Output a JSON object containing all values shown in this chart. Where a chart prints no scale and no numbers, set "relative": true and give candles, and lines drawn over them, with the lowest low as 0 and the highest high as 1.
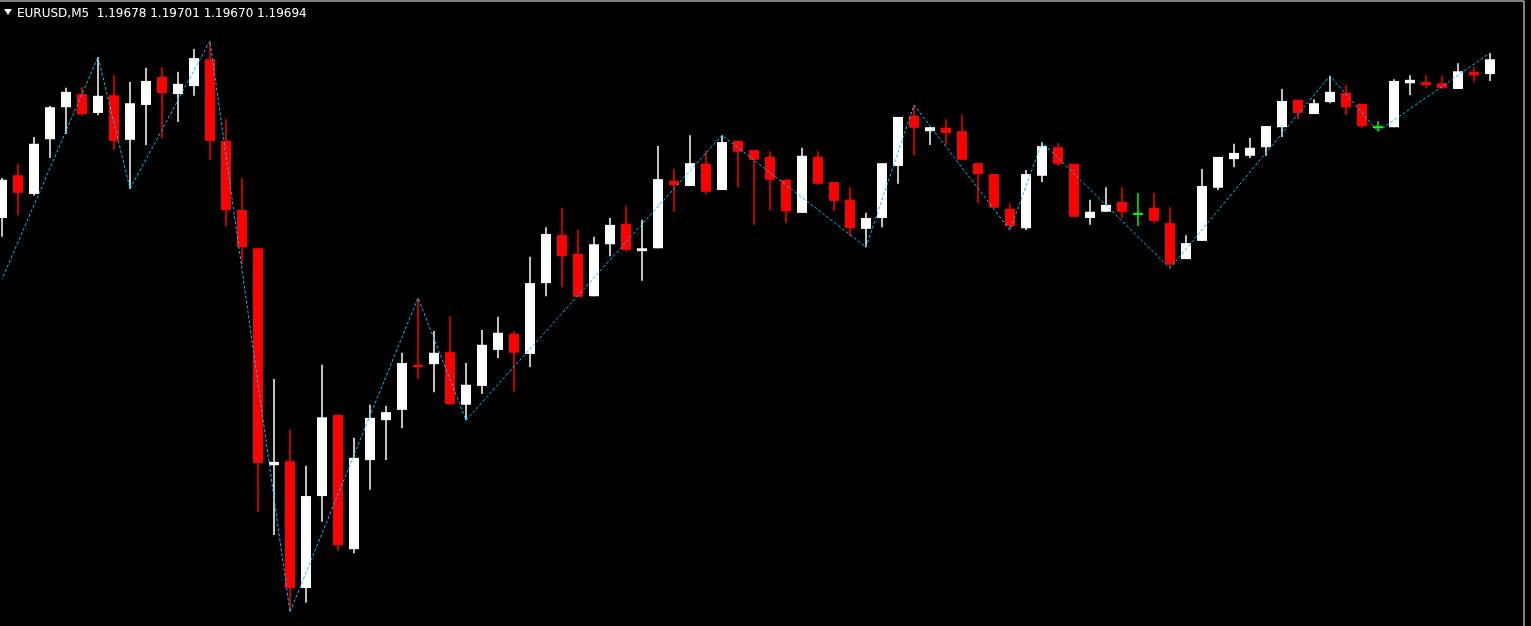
{
  "chart_data": {
    "type": "candlestick",
    "title": "EURUSD,M5  1.19678 1.19701 1.19670 1.19694",
    "relative": true,
    "categories": [
      null,
      null,
      null,
      null,
      null,
      null,
      null,
      null,
      null,
      null,
      null,
      null,
      null,
      null,
      null,
      null,
      null,
      null,
      null,
      null,
      null,
      null,
      null,
      null,
      null,
      null,
      null,
      null,
      null,
      null,
      null,
      null,
      null,
      null,
      null,
      null,
      null,
      null,
      null,
      null,
      null,
      null,
      null,
      null,
      null,
      null,
      null,
      null,
      null,
      null,
      null,
      null,
      null,
      null,
      null,
      null,
      null,
      null,
      null,
      null,
      null,
      null,
      null,
      null,
      null,
      null,
      null,
      null,
      null,
      null,
      null,
      null,
      null,
      null,
      null,
      null,
      null,
      null,
      null,
      null,
      null,
      null,
      null,
      null,
      null,
      null,
      null,
      null,
      null,
      null,
      null,
      null,
      null,
      null
    ],
    "ohlc": [
      [
        0.69,
        0.76,
        0.657,
        0.757
      ],
      [
        0.765,
        0.785,
        0.695,
        0.734
      ],
      [
        0.732,
        0.832,
        0.729,
        0.82
      ],
      [
        0.828,
        0.886,
        0.795,
        0.884
      ],
      [
        0.884,
        0.918,
        0.837,
        0.911
      ],
      [
        0.907,
        0.919,
        0.87,
        0.872
      ],
      [
        0.874,
        0.972,
        0.87,
        0.904
      ],
      [
        0.905,
        0.94,
        0.809,
        0.825
      ],
      [
        0.827,
        0.928,
        0.741,
        0.891
      ],
      [
        0.888,
        0.953,
        0.818,
        0.93
      ],
      [
        0.937,
        0.954,
        0.83,
        0.909
      ],
      [
        0.907,
        0.946,
        0.858,
        0.925
      ],
      [
        0.921,
        0.986,
        0.904,
        0.97
      ],
      [
        0.968,
        1,
        0.792,
        0.825
      ],
      [
        0.825,
        0.863,
        0.676,
        0.704
      ],
      [
        0.704,
        0.76,
        0.608,
        0.639
      ],
      [
        0.637,
        0.637,
        0.175,
        0.261
      ],
      [
        0.257,
        0.408,
        0.135,
        0.263
      ],
      [
        0.264,
        0.319,
        0,
        0.042
      ],
      [
        0.042,
        0.256,
        0.016,
        0.203
      ],
      [
        0.203,
        0.433,
        0.158,
        0.341
      ],
      [
        0.345,
        0.345,
        0.107,
        0.117
      ],
      [
        0.11,
        0.305,
        0.103,
        0.27
      ],
      [
        0.266,
        0.363,
        0.214,
        0.34
      ],
      [
        0.336,
        0.361,
        0.266,
        0.35
      ],
      [
        0.354,
        0.454,
        0.322,
        0.436
      ],
      [
        0.433,
        0.55,
        0.408,
        0.429
      ],
      [
        0.434,
        0.492,
        0.385,
        0.454
      ],
      [
        0.455,
        0.518,
        0.363,
        0.364
      ],
      [
        0.363,
        0.436,
        0.336,
        0.398
      ],
      [
        0.396,
        0.494,
        0.382,
        0.468
      ],
      [
        0.459,
        0.517,
        0.445,
        0.489
      ],
      [
        0.487,
        0.492,
        0.385,
        0.454
      ],
      [
        0.452,
        0.622,
        0.429,
        0.576
      ],
      [
        0.576,
        0.674,
        0.553,
        0.662
      ],
      [
        0.66,
        0.708,
        0.569,
        0.623
      ],
      [
        0.627,
        0.669,
        0.552,
        0.552
      ],
      [
        0.553,
        0.657,
        0.553,
        0.644
      ],
      [
        0.644,
        0.69,
        0.623,
        0.678
      ],
      [
        0.68,
        0.711,
        0.632,
        0.634
      ],
      [
        0.632,
        0.687,
        0.58,
        0.637
      ],
      [
        0.637,
        0.816,
        0.637,
        0.758
      ],
      [
        0.755,
        0.776,
        0.701,
        0.748
      ],
      [
        0.746,
        0.835,
        0.746,
        0.786
      ],
      [
        0.785,
        0.807,
        0.732,
        0.736
      ],
      [
        0.739,
        0.835,
        0.739,
        0.823
      ],
      [
        0.825,
        0.825,
        0.743,
        0.806
      ],
      [
        0.809,
        0.809,
        0.678,
        0.792
      ],
      [
        0.797,
        0.807,
        0.704,
        0.757
      ],
      [
        0.757,
        0.758,
        0.681,
        0.702
      ],
      [
        0.699,
        0.813,
        0.699,
        0.799
      ],
      [
        0.797,
        0.807,
        0.748,
        0.75
      ],
      [
        0.753,
        0.753,
        0.702,
        0.72
      ],
      [
        0.722,
        0.744,
        0.658,
        0.672
      ],
      [
        0.671,
        0.699,
        0.639,
        0.69
      ],
      [
        0.69,
        0.786,
        0.674,
        0.786
      ],
      [
        0.781,
        0.867,
        0.75,
        0.867
      ],
      [
        0.869,
        0.888,
        0.799,
        0.848
      ],
      [
        0.842,
        0.849,
        0.818,
        0.849
      ],
      [
        0.848,
        0.863,
        0.818,
        0.839
      ],
      [
        0.842,
        0.87,
        0.792,
        0.792
      ],
      [
        0.786,
        0.786,
        0.716,
        0.767
      ],
      [
        0.767,
        0.767,
        0.708,
        0.708
      ],
      [
        0.706,
        0.716,
        0.669,
        0.676
      ],
      [
        0.672,
        0.774,
        0.669,
        0.767
      ],
      [
        0.764,
        0.823,
        0.753,
        0.816
      ],
      [
        0.814,
        0.821,
        0.781,
        0.785
      ],
      [
        0.785,
        0.785,
        0.692,
        0.692
      ],
      [
        0.69,
        0.722,
        0.678,
        0.701
      ],
      [
        0.701,
        0.744,
        0.701,
        0.713
      ],
      [
        0.718,
        0.744,
        0.69,
        0.701
      ],
      [
        0.699,
        0.734,
        0.676,
        0.699
      ],
      [
        0.708,
        0.734,
        0.681,
        0.685
      ],
      [
        0.681,
        0.709,
        0.602,
        0.609
      ],
      [
        0.618,
        0.66,
        0.618,
        0.646
      ],
      [
        0.65,
        0.776,
        0.65,
        0.746
      ],
      [
        0.743,
        0.797,
        0.739,
        0.797
      ],
      [
        0.793,
        0.82,
        0.779,
        0.804
      ],
      [
        0.799,
        0.83,
        0.795,
        0.813
      ],
      [
        0.814,
        0.851,
        0.799,
        0.851
      ],
      [
        0.849,
        0.916,
        0.832,
        0.895
      ],
      [
        0.897,
        0.897,
        0.863,
        0.874
      ],
      [
        0.872,
        0.898,
        0.872,
        0.891
      ],
      [
        0.893,
        0.939,
        0.891,
        0.911
      ],
      [
        0.909,
        0.923,
        0.87,
        0.884
      ],
      [
        0.89,
        0.89,
        0.848,
        0.851
      ],
      [
        0.851,
        0.86,
        0.842,
        0.851
      ],
      [
        0.849,
        0.933,
        0.849,
        0.93
      ],
      [
        0.926,
        0.94,
        0.905,
        0.932
      ],
      [
        0.928,
        0.94,
        0.918,
        0.923
      ],
      [
        0.926,
        0.939,
        0.916,
        0.918
      ],
      [
        0.916,
        0.961,
        0.916,
        0.947
      ],
      [
        0.946,
        0.954,
        0.928,
        0.94
      ],
      [
        0.942,
        0.979,
        0.93,
        0.968
      ]
    ],
    "colors": [
      "#ffffff",
      "#ff0000",
      "#ffffff",
      "#ffffff",
      "#ffffff",
      "#ff0000",
      "#ffffff",
      "#ff0000",
      "#ffffff",
      "#ffffff",
      "#ff0000",
      "#ffffff",
      "#ffffff",
      "#ff0000",
      "#ff0000",
      "#ff0000",
      "#ff0000",
      "#ffffff",
      "#ff0000",
      "#ffffff",
      "#ffffff",
      "#ff0000",
      "#ffffff",
      "#ffffff",
      "#ffffff",
      "#ffffff",
      "#ff0000",
      "#ffffff",
      "#ff0000",
      "#ffffff",
      "#ffffff",
      "#ffffff",
      "#ff0000",
      "#ffffff",
      "#ffffff",
      "#ff0000",
      "#ff0000",
      "#ffffff",
      "#ffffff",
      "#ff0000",
      "#ffffff",
      "#ffffff",
      "#ff0000",
      "#ffffff",
      "#ff0000",
      "#ffffff",
      "#ff0000",
      "#ff0000",
      "#ff0000",
      "#ff0000",
      "#ffffff",
      "#ff0000",
      "#ff0000",
      "#ff0000",
      "#ffffff",
      "#ffffff",
      "#ffffff",
      "#ff0000",
      "#ffffff",
      "#ff0000",
      "#ff0000",
      "#ff0000",
      "#ff0000",
      "#ff0000",
      "#ffffff",
      "#ffffff",
      "#ff0000",
      "#ff0000",
      "#ffffff",
      "#ffffff",
      "#ff0000",
      "#00ff00",
      "#ff0000",
      "#ff0000",
      "#ffffff",
      "#ffffff",
      "#ffffff",
      "#ffffff",
      "#ffffff",
      "#ffffff",
      "#ffffff",
      "#ff0000",
      "#ffffff",
      "#ffffff",
      "#ff0000",
      "#ff0000",
      "#00ff00",
      "#ffffff",
      "#ffffff",
      "#ff0000",
      "#ff0000",
      "#ffffff",
      "#ff0000",
      "#ffffff"
    ],
    "series": [
      {
        "type": "line",
        "color": "#00bfff",
        "line_style": "dashed",
        "values": [
          0.583,
          null,
          null,
          null,
          null,
          null,
          0.972,
          null,
          0.741,
          null,
          null,
          null,
          null,
          1,
          null,
          null,
          null,
          null,
          0,
          null,
          null,
          null,
          null,
          null,
          null,
          null,
          0.55,
          null,
          null,
          0.336,
          null,
          null,
          null,
          null,
          null,
          null,
          null,
          null,
          null,
          null,
          null,
          null,
          null,
          null,
          null,
          0.835,
          null,
          null,
          null,
          null,
          null,
          null,
          null,
          null,
          0.639,
          null,
          null,
          0.888,
          null,
          null,
          null,
          null,
          null,
          0.669,
          null,
          0.823,
          null,
          null,
          null,
          null,
          null,
          null,
          null,
          0.602,
          null,
          null,
          null,
          null,
          null,
          null,
          null,
          null,
          null,
          0.939,
          null,
          null,
          0.842,
          null,
          null,
          null,
          null,
          null,
          null,
          0.979
        ]
      }
    ]
  }
}
